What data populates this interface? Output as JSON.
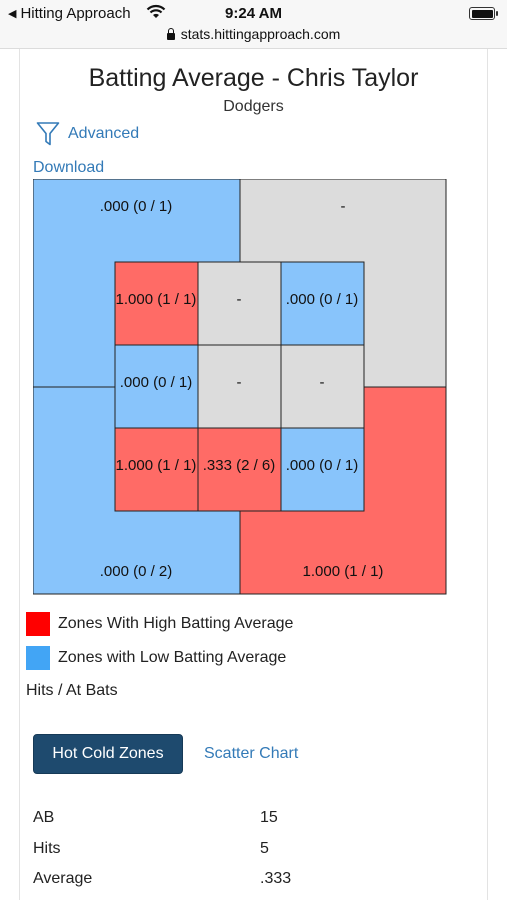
{
  "status_bar": {
    "back_label": "Hitting Approach",
    "time": "9:24 AM",
    "url": "stats.hittingapproach.com"
  },
  "header": {
    "title": "Batting Average - Chris Taylor",
    "team": "Dodgers"
  },
  "links": {
    "advanced": "Advanced",
    "download": "Download"
  },
  "zones": {
    "outer": [
      {
        "id": "outer-top-left",
        "label": ".000 (0 / 1)",
        "color": "#88c4fb"
      },
      {
        "id": "outer-top-right",
        "label": "-",
        "color": "#dcdcdc"
      },
      {
        "id": "outer-bottom-left",
        "label": ".000 (0 / 2)",
        "color": "#88c4fb"
      },
      {
        "id": "outer-bottom-right",
        "label": "1.000 (1 / 1)",
        "color": "#ff6b66"
      }
    ],
    "inner": [
      {
        "id": "z1",
        "label": "1.000 (1 / 1)",
        "color": "#ff6b66"
      },
      {
        "id": "z2",
        "label": "-",
        "color": "#dcdcdc"
      },
      {
        "id": "z3",
        "label": ".000 (0 / 1)",
        "color": "#88c4fb"
      },
      {
        "id": "z4",
        "label": ".000 (0 / 1)",
        "color": "#88c4fb"
      },
      {
        "id": "z5",
        "label": "-",
        "color": "#dcdcdc"
      },
      {
        "id": "z6",
        "label": "-",
        "color": "#dcdcdc"
      },
      {
        "id": "z7",
        "label": "1.000 (1 / 1)",
        "color": "#ff6b66"
      },
      {
        "id": "z8",
        "label": ".333 (2 / 6)",
        "color": "#ff6b66"
      },
      {
        "id": "z9",
        "label": ".000 (0 / 1)",
        "color": "#88c4fb"
      }
    ]
  },
  "legend": {
    "high": {
      "label": "Zones With High Batting Average",
      "color": "#ff0000"
    },
    "low": {
      "label": "Zones with Low Batting Average",
      "color": "#42a5f5"
    },
    "note": "Hits / At Bats"
  },
  "tabs": {
    "hot_cold": "Hot Cold Zones",
    "scatter": "Scatter Chart"
  },
  "stats": [
    {
      "label": "AB",
      "value": "15"
    },
    {
      "label": "Hits",
      "value": "5"
    },
    {
      "label": "Average",
      "value": ".333"
    }
  ]
}
